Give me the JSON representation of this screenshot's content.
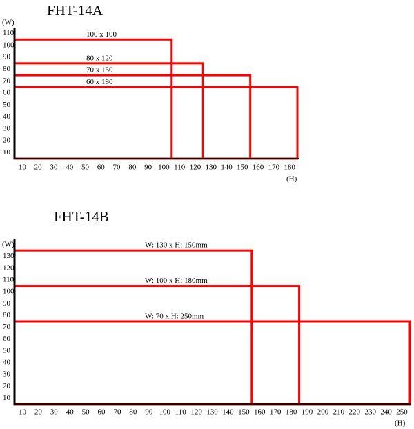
{
  "chart_data": [
    {
      "type": "rect",
      "title": "FHT-14A",
      "ylabel": "(W)",
      "xlabel": "(H)",
      "color": "#ff0000",
      "xlim": [
        0,
        180
      ],
      "ylim": [
        0,
        110
      ],
      "xticks": [
        10,
        20,
        30,
        40,
        50,
        60,
        70,
        80,
        90,
        100,
        110,
        120,
        130,
        140,
        150,
        160,
        170,
        180
      ],
      "yticks": [
        10,
        20,
        30,
        40,
        50,
        60,
        70,
        80,
        90,
        100,
        110
      ],
      "rects": [
        {
          "label": "100 x 100",
          "w": 100,
          "h": 100
        },
        {
          "label": "80 x 120",
          "w": 80,
          "h": 120
        },
        {
          "label": "70 x 150",
          "w": 70,
          "h": 150
        },
        {
          "label": "60 x 180",
          "w": 60,
          "h": 180
        }
      ]
    },
    {
      "type": "rect",
      "title": "FHT-14B",
      "ylabel": "(W)",
      "xlabel": "(H)",
      "color": "#ff0000",
      "xlim": [
        0,
        250
      ],
      "ylim": [
        0,
        140
      ],
      "xticks": [
        10,
        20,
        30,
        40,
        50,
        60,
        70,
        80,
        90,
        100,
        110,
        120,
        130,
        140,
        150,
        160,
        170,
        180,
        190,
        200,
        210,
        220,
        230,
        240,
        250
      ],
      "yticks": [
        10,
        20,
        30,
        40,
        50,
        60,
        70,
        80,
        90,
        100,
        110,
        120,
        130
      ],
      "rects": [
        {
          "label": "W: 130 x H: 150mm",
          "w": 130,
          "h": 150
        },
        {
          "label": "W: 100 x H: 180mm",
          "w": 100,
          "h": 180
        },
        {
          "label": "W: 70 x H: 250mm",
          "w": 70,
          "h": 250
        }
      ]
    }
  ]
}
